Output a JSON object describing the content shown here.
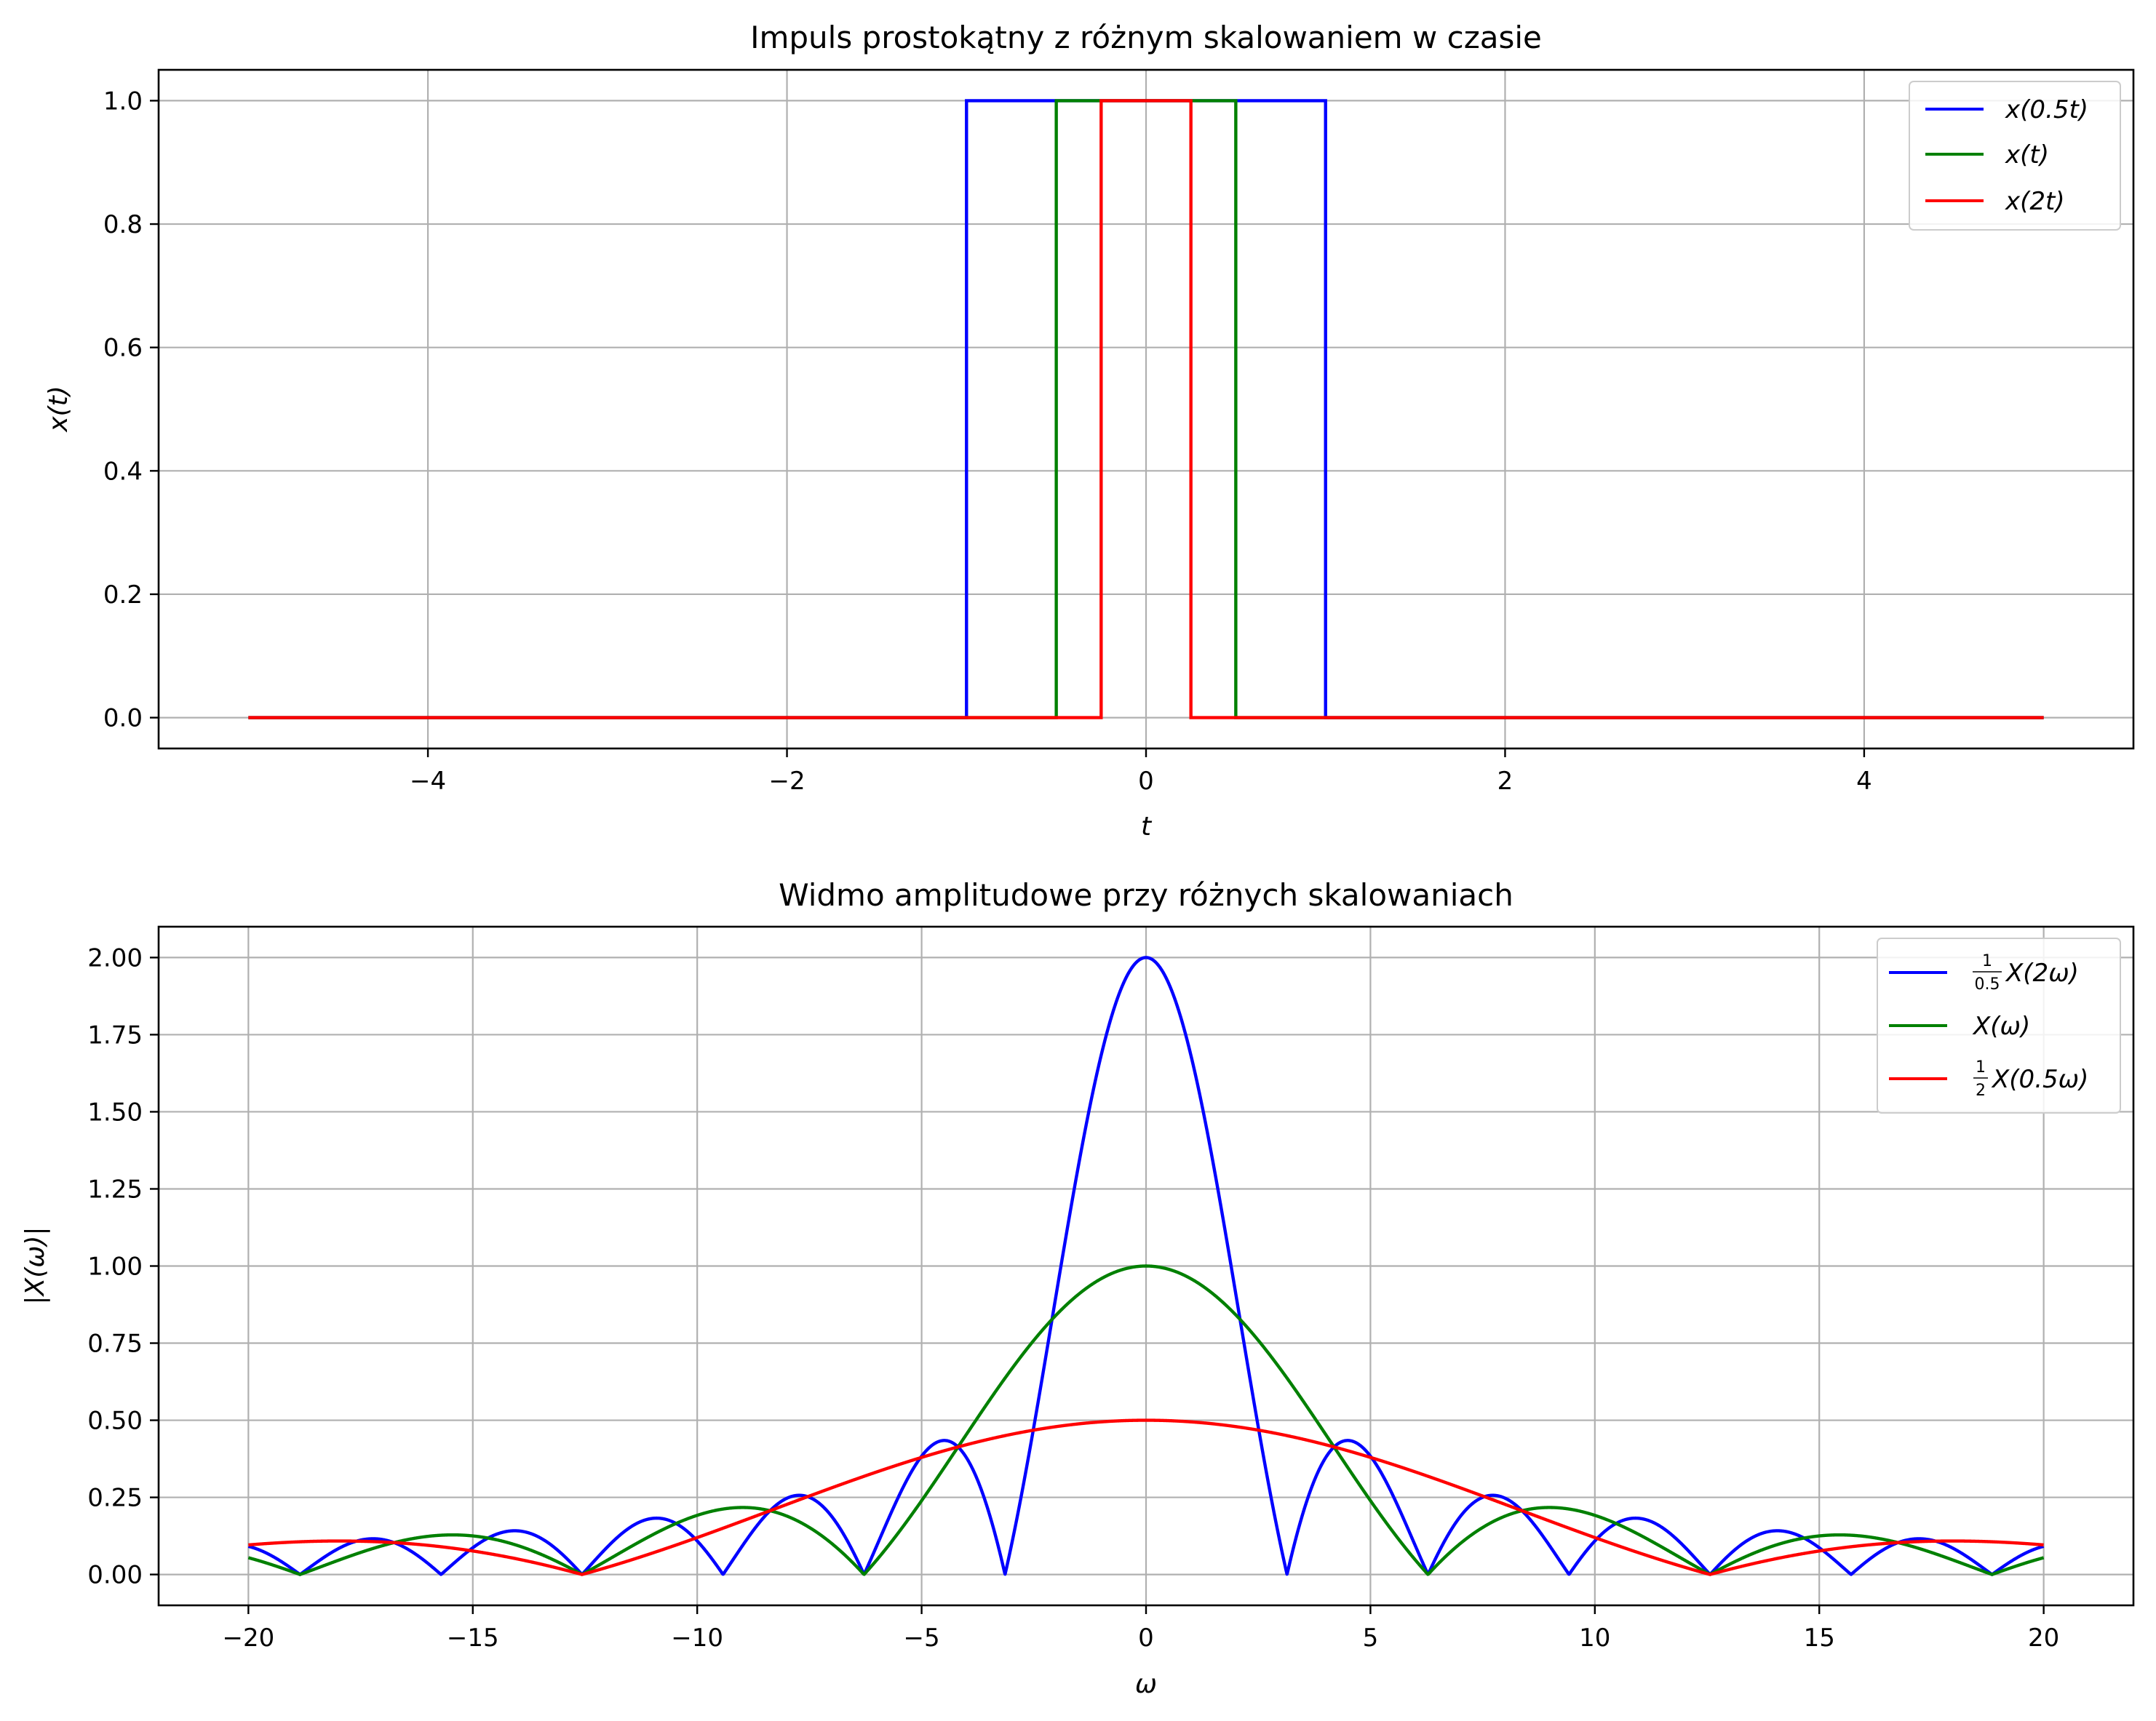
{
  "chart_data": [
    {
      "type": "line",
      "title": "Impuls prostokątny z różnym skalowaniem w czasie",
      "xlabel": "t",
      "ylabel": "x(t)",
      "xlim": [
        -5.5,
        5.5
      ],
      "ylim": [
        -0.05,
        1.05
      ],
      "xticks": [
        -4,
        -2,
        0,
        2,
        4
      ],
      "xtick_labels": [
        "−4",
        "−2",
        "0",
        "2",
        "4"
      ],
      "yticks": [
        0,
        0.2,
        0.4,
        0.6,
        0.8,
        1.0
      ],
      "ytick_labels": [
        "0.0",
        "0.2",
        "0.4",
        "0.6",
        "0.8",
        "1.0"
      ],
      "grid": true,
      "legend_position": "top-right",
      "series": [
        {
          "name": "x(0.5t)",
          "color": "#0000ff",
          "x": [
            -5,
            -1,
            -1,
            1,
            1,
            5
          ],
          "y": [
            0,
            0,
            1,
            1,
            0,
            0
          ]
        },
        {
          "name": "x(t)",
          "color": "#008000",
          "x": [
            -5,
            -0.5,
            -0.5,
            0.5,
            0.5,
            5
          ],
          "y": [
            0,
            0,
            1,
            1,
            0,
            0
          ]
        },
        {
          "name": "x(2t)",
          "color": "#ff0000",
          "x": [
            -5,
            -0.25,
            -0.25,
            0.25,
            0.25,
            5
          ],
          "y": [
            0,
            0,
            1,
            1,
            0,
            0
          ]
        }
      ]
    },
    {
      "type": "line",
      "title": "Widmo amplitudowe przy różnych skalowaniach",
      "xlabel": "ω",
      "ylabel": "|X(ω)|",
      "xlim": [
        -22,
        22
      ],
      "ylim": [
        -0.1,
        2.1
      ],
      "xticks": [
        -20,
        -15,
        -10,
        -5,
        0,
        5,
        10,
        15,
        20
      ],
      "xtick_labels": [
        "−20",
        "−15",
        "−10",
        "−5",
        "0",
        "5",
        "10",
        "15",
        "20"
      ],
      "yticks": [
        0,
        0.25,
        0.5,
        0.75,
        1.0,
        1.25,
        1.5,
        1.75,
        2.0
      ],
      "ytick_labels": [
        "0.00",
        "0.25",
        "0.50",
        "0.75",
        "1.00",
        "1.25",
        "1.50",
        "1.75",
        "2.00"
      ],
      "grid": true,
      "legend_position": "top-right",
      "x_range": [
        -20,
        20
      ],
      "series": [
        {
          "name": "(1/0.5)X(2ω)",
          "legend_main": "X(2ω)",
          "frac_num": "1",
          "frac_den": "0.5",
          "color": "#0000ff",
          "function": "|sin(ω)/(ω/2)|",
          "peak": 2.0
        },
        {
          "name": "X(ω)",
          "legend_main": "X(ω)",
          "color": "#008000",
          "function": "|sin(ω/2)/(ω/2)|",
          "peak": 1.0
        },
        {
          "name": "(1/2)X(0.5ω)",
          "legend_main": "X(0.5ω)",
          "frac_num": "1",
          "frac_den": "2",
          "color": "#ff0000",
          "function": "|sin(ω/4)/(ω/2)|",
          "peak": 0.5
        }
      ]
    }
  ]
}
